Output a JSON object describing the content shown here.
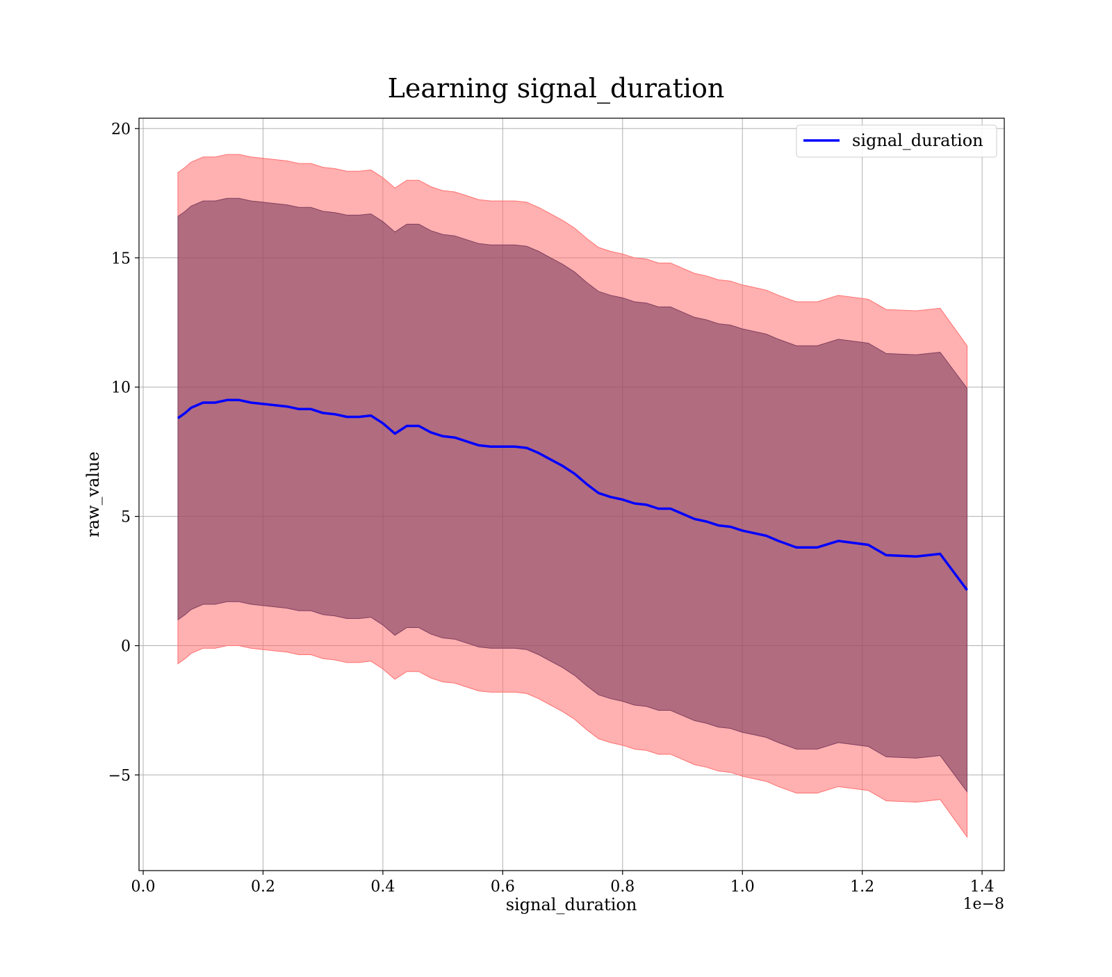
{
  "chart_data": {
    "type": "area",
    "title": "Learning signal_duration",
    "xlabel": "signal_duration",
    "ylabel": "raw_value",
    "x_offset_text": "1e−8",
    "x_scale_exponent": -8,
    "xlim": [
      -0.007,
      1.437
    ],
    "ylim": [
      -8.7,
      20.4
    ],
    "x_ticks": [
      0.0,
      0.2,
      0.4,
      0.6,
      0.8,
      1.0,
      1.2,
      1.4
    ],
    "x_tick_labels": [
      "0.0",
      "0.2",
      "0.4",
      "0.6",
      "0.8",
      "1.0",
      "1.2",
      "1.4"
    ],
    "y_ticks": [
      -5,
      0,
      5,
      10,
      15,
      20
    ],
    "y_tick_labels": [
      "−5",
      "0",
      "5",
      "10",
      "15",
      "20"
    ],
    "grid": true,
    "legend_position": "top-right",
    "colors": {
      "line": "#0000ff",
      "outer_band": "#ff6f6f",
      "outer_band_opacity": 0.55,
      "inner_band": "#7f3f5f",
      "inner_band_opacity": 0.6,
      "grid": "#b0b0b0"
    },
    "series": [
      {
        "name": "signal_duration",
        "role": "mean",
        "x": [
          0.058,
          0.07,
          0.08,
          0.1,
          0.12,
          0.14,
          0.16,
          0.18,
          0.2,
          0.22,
          0.24,
          0.26,
          0.28,
          0.3,
          0.32,
          0.34,
          0.36,
          0.38,
          0.4,
          0.42,
          0.44,
          0.46,
          0.48,
          0.5,
          0.52,
          0.54,
          0.56,
          0.58,
          0.6,
          0.62,
          0.64,
          0.66,
          0.68,
          0.7,
          0.72,
          0.74,
          0.76,
          0.78,
          0.8,
          0.82,
          0.84,
          0.86,
          0.88,
          0.9,
          0.92,
          0.94,
          0.96,
          0.98,
          1.0,
          1.02,
          1.04,
          1.06,
          1.09,
          1.125,
          1.16,
          1.21,
          1.24,
          1.29,
          1.33,
          1.375
        ],
        "y": [
          8.8,
          9.0,
          9.2,
          9.4,
          9.4,
          9.5,
          9.5,
          9.4,
          9.35,
          9.3,
          9.25,
          9.15,
          9.15,
          9.0,
          8.95,
          8.85,
          8.85,
          8.9,
          8.6,
          8.2,
          8.5,
          8.5,
          8.25,
          8.1,
          8.05,
          7.9,
          7.75,
          7.7,
          7.7,
          7.7,
          7.65,
          7.45,
          7.2,
          6.95,
          6.65,
          6.25,
          5.9,
          5.75,
          5.65,
          5.5,
          5.45,
          5.3,
          5.3,
          5.1,
          4.9,
          4.8,
          4.65,
          4.6,
          4.45,
          4.35,
          4.25,
          4.05,
          3.8,
          3.8,
          4.05,
          3.9,
          3.5,
          3.45,
          3.55,
          2.15
        ]
      },
      {
        "name": "",
        "role": "inner_band",
        "x": [
          0.058,
          0.07,
          0.08,
          0.1,
          0.12,
          0.14,
          0.16,
          0.18,
          0.2,
          0.22,
          0.24,
          0.26,
          0.28,
          0.3,
          0.32,
          0.34,
          0.36,
          0.38,
          0.4,
          0.42,
          0.44,
          0.46,
          0.48,
          0.5,
          0.52,
          0.54,
          0.56,
          0.58,
          0.6,
          0.62,
          0.64,
          0.66,
          0.68,
          0.7,
          0.72,
          0.74,
          0.76,
          0.78,
          0.8,
          0.82,
          0.84,
          0.86,
          0.88,
          0.9,
          0.92,
          0.94,
          0.96,
          0.98,
          1.0,
          1.02,
          1.04,
          1.06,
          1.09,
          1.125,
          1.16,
          1.21,
          1.24,
          1.29,
          1.33,
          1.375
        ],
        "lower": [
          1.0,
          1.2,
          1.4,
          1.6,
          1.6,
          1.7,
          1.7,
          1.6,
          1.55,
          1.5,
          1.45,
          1.35,
          1.35,
          1.2,
          1.15,
          1.05,
          1.05,
          1.1,
          0.8,
          0.4,
          0.7,
          0.7,
          0.45,
          0.3,
          0.25,
          0.1,
          -0.05,
          -0.1,
          -0.1,
          -0.1,
          -0.15,
          -0.35,
          -0.6,
          -0.85,
          -1.15,
          -1.55,
          -1.9,
          -2.05,
          -2.15,
          -2.3,
          -2.35,
          -2.5,
          -2.5,
          -2.7,
          -2.9,
          -3.0,
          -3.15,
          -3.2,
          -3.35,
          -3.45,
          -3.55,
          -3.75,
          -4.0,
          -4.0,
          -3.75,
          -3.9,
          -4.3,
          -4.35,
          -4.25,
          -5.65
        ],
        "upper": [
          16.6,
          16.8,
          17.0,
          17.2,
          17.2,
          17.3,
          17.3,
          17.2,
          17.15,
          17.1,
          17.05,
          16.95,
          16.95,
          16.8,
          16.75,
          16.65,
          16.65,
          16.7,
          16.4,
          16.0,
          16.3,
          16.3,
          16.05,
          15.9,
          15.85,
          15.7,
          15.55,
          15.5,
          15.5,
          15.5,
          15.45,
          15.25,
          15.0,
          14.75,
          14.45,
          14.05,
          13.7,
          13.55,
          13.45,
          13.3,
          13.25,
          13.1,
          13.1,
          12.9,
          12.7,
          12.6,
          12.45,
          12.4,
          12.25,
          12.15,
          12.05,
          11.85,
          11.6,
          11.6,
          11.85,
          11.7,
          11.3,
          11.25,
          11.35,
          9.95
        ]
      },
      {
        "name": "",
        "role": "outer_band",
        "x": [
          0.058,
          0.07,
          0.08,
          0.1,
          0.12,
          0.14,
          0.16,
          0.18,
          0.2,
          0.22,
          0.24,
          0.26,
          0.28,
          0.3,
          0.32,
          0.34,
          0.36,
          0.38,
          0.4,
          0.42,
          0.44,
          0.46,
          0.48,
          0.5,
          0.52,
          0.54,
          0.56,
          0.58,
          0.6,
          0.62,
          0.64,
          0.66,
          0.68,
          0.7,
          0.72,
          0.74,
          0.76,
          0.78,
          0.8,
          0.82,
          0.84,
          0.86,
          0.88,
          0.9,
          0.92,
          0.94,
          0.96,
          0.98,
          1.0,
          1.02,
          1.04,
          1.06,
          1.09,
          1.125,
          1.16,
          1.21,
          1.24,
          1.29,
          1.33,
          1.375
        ],
        "lower": [
          -0.7,
          -0.5,
          -0.3,
          -0.1,
          -0.1,
          0.0,
          0.0,
          -0.1,
          -0.15,
          -0.2,
          -0.25,
          -0.35,
          -0.35,
          -0.5,
          -0.55,
          -0.65,
          -0.65,
          -0.6,
          -0.9,
          -1.3,
          -1.0,
          -1.0,
          -1.25,
          -1.4,
          -1.45,
          -1.6,
          -1.75,
          -1.8,
          -1.8,
          -1.8,
          -1.85,
          -2.05,
          -2.3,
          -2.55,
          -2.85,
          -3.25,
          -3.6,
          -3.75,
          -3.85,
          -4.0,
          -4.05,
          -4.2,
          -4.2,
          -4.4,
          -4.6,
          -4.7,
          -4.85,
          -4.9,
          -5.05,
          -5.15,
          -5.25,
          -5.45,
          -5.7,
          -5.7,
          -5.45,
          -5.6,
          -6.0,
          -6.05,
          -5.95,
          -7.4
        ],
        "upper": [
          18.3,
          18.5,
          18.7,
          18.9,
          18.9,
          19.0,
          19.0,
          18.9,
          18.85,
          18.8,
          18.75,
          18.65,
          18.65,
          18.5,
          18.45,
          18.35,
          18.35,
          18.4,
          18.1,
          17.7,
          18.0,
          18.0,
          17.75,
          17.6,
          17.55,
          17.4,
          17.25,
          17.2,
          17.2,
          17.2,
          17.15,
          16.95,
          16.7,
          16.45,
          16.15,
          15.75,
          15.4,
          15.25,
          15.15,
          15.0,
          14.95,
          14.8,
          14.8,
          14.6,
          14.4,
          14.3,
          14.15,
          14.1,
          13.95,
          13.85,
          13.75,
          13.55,
          13.3,
          13.3,
          13.55,
          13.4,
          13.0,
          12.95,
          13.05,
          11.6
        ]
      }
    ]
  }
}
